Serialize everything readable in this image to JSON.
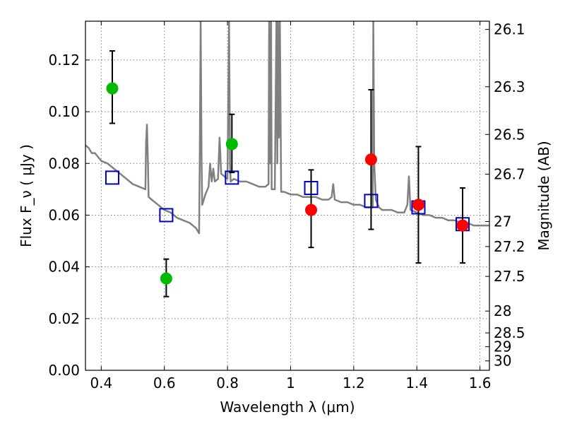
{
  "chart_data": {
    "type": "scatter",
    "xlabel": "Wavelength  λ (μm)",
    "ylabel": "Flux  F_ν  ( μJy )",
    "ylabel_right": "Magnitude (AB)",
    "xlim": [
      0.35,
      1.63
    ],
    "ylim": [
      0.0,
      0.135
    ],
    "x_ticks": [
      0.4,
      0.6,
      0.8,
      1.0,
      1.2,
      1.4,
      1.6
    ],
    "x_tick_labels": [
      "0.4",
      "0.6",
      "0.8",
      "1",
      "1.2",
      "1.4",
      "1.6"
    ],
    "y_ticks": [
      0.0,
      0.02,
      0.04,
      0.06,
      0.08,
      0.1,
      0.12
    ],
    "y_tick_labels": [
      "0.00",
      "0.02",
      "0.04",
      "0.06",
      "0.08",
      "0.10",
      "0.12"
    ],
    "right_ticks": [
      26.1,
      26.3,
      26.5,
      26.7,
      27,
      27.2,
      27.5,
      28,
      28.5,
      29,
      30
    ],
    "right_tick_labels": [
      "26.1",
      "26.3",
      "26.5",
      "26.7",
      "27",
      "27.2",
      "27.5",
      "28",
      "28.5",
      "29",
      "30"
    ],
    "grid": true,
    "colors": {
      "green": "#00bb00",
      "red": "#ff0000",
      "blue": "#0000cc",
      "sed": "#808080",
      "errorbar": "#000000"
    },
    "series": [
      {
        "marker": "circle",
        "color": "#00bb00",
        "points": [
          {
            "x": 0.435,
            "y": 0.109,
            "err_low": 0.0955,
            "err_high": 0.1235
          },
          {
            "x": 0.606,
            "y": 0.0355,
            "err_low": 0.0285,
            "err_high": 0.043
          },
          {
            "x": 0.814,
            "y": 0.0875,
            "err_low": 0.0765,
            "err_high": 0.099
          }
        ]
      },
      {
        "marker": "circle",
        "color": "#ff0000",
        "points": [
          {
            "x": 1.065,
            "y": 0.062,
            "err_low": 0.0475,
            "err_high": 0.0775
          },
          {
            "x": 1.255,
            "y": 0.0815,
            "err_low": 0.0545,
            "err_high": 0.1085
          },
          {
            "x": 1.405,
            "y": 0.064,
            "err_low": 0.0415,
            "err_high": 0.0865
          },
          {
            "x": 1.545,
            "y": 0.056,
            "err_low": 0.0415,
            "err_high": 0.0705
          }
        ]
      },
      {
        "marker": "open-square",
        "color": "#0000cc",
        "points": [
          {
            "x": 0.435,
            "y": 0.0745
          },
          {
            "x": 0.606,
            "y": 0.06
          },
          {
            "x": 0.814,
            "y": 0.0745
          },
          {
            "x": 1.065,
            "y": 0.0705
          },
          {
            "x": 1.255,
            "y": 0.0655
          },
          {
            "x": 1.405,
            "y": 0.063
          },
          {
            "x": 1.545,
            "y": 0.0565
          }
        ]
      },
      {
        "type": "line",
        "color": "#808080",
        "x": [
          0.35,
          0.36,
          0.37,
          0.38,
          0.4,
          0.42,
          0.44,
          0.46,
          0.48,
          0.49,
          0.5,
          0.52,
          0.54,
          0.542,
          0.545,
          0.548,
          0.55,
          0.56,
          0.58,
          0.6,
          0.62,
          0.64,
          0.66,
          0.68,
          0.7,
          0.705,
          0.71,
          0.712,
          0.715,
          0.718,
          0.72,
          0.73,
          0.74,
          0.745,
          0.75,
          0.755,
          0.76,
          0.77,
          0.775,
          0.78,
          0.79,
          0.8,
          0.805,
          0.808,
          0.81,
          0.82,
          0.84,
          0.86,
          0.88,
          0.9,
          0.92,
          0.93,
          0.932,
          0.935,
          0.938,
          0.94,
          0.95,
          0.955,
          0.958,
          0.96,
          0.963,
          0.966,
          0.97,
          0.98,
          1.0,
          1.02,
          1.04,
          1.06,
          1.08,
          1.1,
          1.12,
          1.13,
          1.135,
          1.14,
          1.16,
          1.18,
          1.2,
          1.22,
          1.24,
          1.26,
          1.262,
          1.265,
          1.27,
          1.28,
          1.29,
          1.3,
          1.32,
          1.34,
          1.36,
          1.37,
          1.375,
          1.38,
          1.4,
          1.42,
          1.44,
          1.46,
          1.48,
          1.5,
          1.52,
          1.54,
          1.56,
          1.58,
          1.6,
          1.62,
          1.63
        ],
        "y": [
          0.087,
          0.086,
          0.084,
          0.084,
          0.081,
          0.08,
          0.078,
          0.076,
          0.074,
          0.073,
          0.072,
          0.071,
          0.07,
          0.088,
          0.095,
          0.08,
          0.067,
          0.066,
          0.064,
          0.062,
          0.061,
          0.059,
          0.058,
          0.057,
          0.055,
          0.054,
          0.053,
          0.08,
          0.135,
          0.08,
          0.064,
          0.068,
          0.071,
          0.08,
          0.073,
          0.078,
          0.073,
          0.074,
          0.09,
          0.076,
          0.075,
          0.074,
          0.135,
          0.08,
          0.073,
          0.074,
          0.073,
          0.073,
          0.072,
          0.071,
          0.071,
          0.072,
          0.135,
          0.08,
          0.135,
          0.07,
          0.07,
          0.135,
          0.08,
          0.135,
          0.09,
          0.135,
          0.069,
          0.069,
          0.068,
          0.068,
          0.067,
          0.067,
          0.067,
          0.066,
          0.066,
          0.067,
          0.072,
          0.066,
          0.065,
          0.065,
          0.064,
          0.064,
          0.063,
          0.063,
          0.135,
          0.08,
          0.066,
          0.063,
          0.062,
          0.062,
          0.062,
          0.061,
          0.061,
          0.064,
          0.075,
          0.062,
          0.061,
          0.06,
          0.06,
          0.059,
          0.059,
          0.058,
          0.058,
          0.057,
          0.057,
          0.056,
          0.056,
          0.056,
          0.056
        ]
      }
    ]
  }
}
